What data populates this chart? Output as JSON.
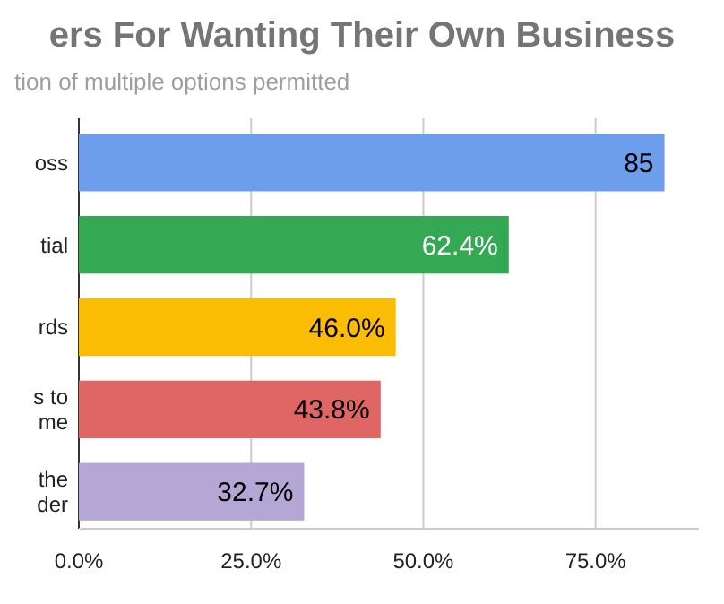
{
  "chart_data": {
    "type": "bar",
    "orientation": "horizontal",
    "title": "ers For Wanting Their Own Business",
    "subtitle": "tion of multiple options permitted",
    "categories": [
      "oss",
      "tial",
      "rds",
      "s to\nme",
      "the\nder"
    ],
    "values": [
      85,
      62.4,
      46.0,
      43.8,
      32.7
    ],
    "value_labels": [
      "85",
      "62.4%",
      "46.0%",
      "43.8%",
      "32.7%"
    ],
    "colors": [
      "#6d9eeb",
      "#34a853",
      "#fbbc04",
      "#e06666",
      "#b4a7d6"
    ],
    "xlim": [
      0,
      90
    ],
    "xticks": [
      {
        "value": 0,
        "label": "0.0%"
      },
      {
        "value": 25,
        "label": "25.0%"
      },
      {
        "value": 50,
        "label": "50.0%"
      },
      {
        "value": 75,
        "label": "75.0%"
      }
    ],
    "grid": "x"
  }
}
